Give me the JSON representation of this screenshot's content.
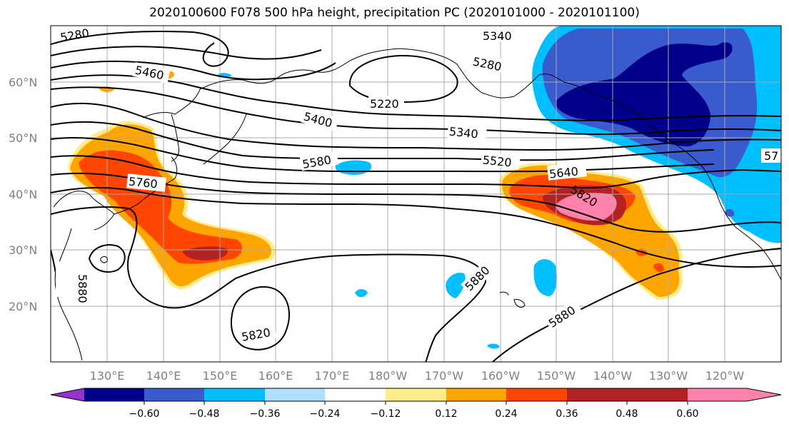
{
  "title": "2020100600 F078 500 hPa height, precipitation PC (2020101000 - 2020101100)",
  "map": {
    "lat_labels": [
      "60°N",
      "50°N",
      "40°N",
      "30°N",
      "20°N"
    ],
    "lon_labels": [
      "130°E",
      "140°E",
      "150°E",
      "160°E",
      "170°E",
      "180°W",
      "170°W",
      "160°W",
      "150°W",
      "140°W",
      "130°W",
      "120°W"
    ]
  },
  "contour_labels": [
    "5280",
    "5340",
    "5280",
    "5460",
    "5220",
    "5400",
    "5340",
    "5580",
    "5520",
    "5640",
    "5760",
    "5820",
    "5880",
    "5880",
    "5820",
    "5880",
    "57"
  ],
  "colorbar": {
    "colors": [
      "#9932cc",
      "#00008b",
      "#3a5bcd",
      "#00bfff",
      "#b0e0ff",
      "#ffffff",
      "#ffec8b",
      "#ffa500",
      "#ff4500",
      "#b22222",
      "#ff82ab"
    ],
    "ticks": [
      "−0.60",
      "−0.48",
      "−0.36",
      "−0.24",
      "−0.12",
      "0.12",
      "0.24",
      "0.36",
      "0.48",
      "0.60"
    ]
  }
}
